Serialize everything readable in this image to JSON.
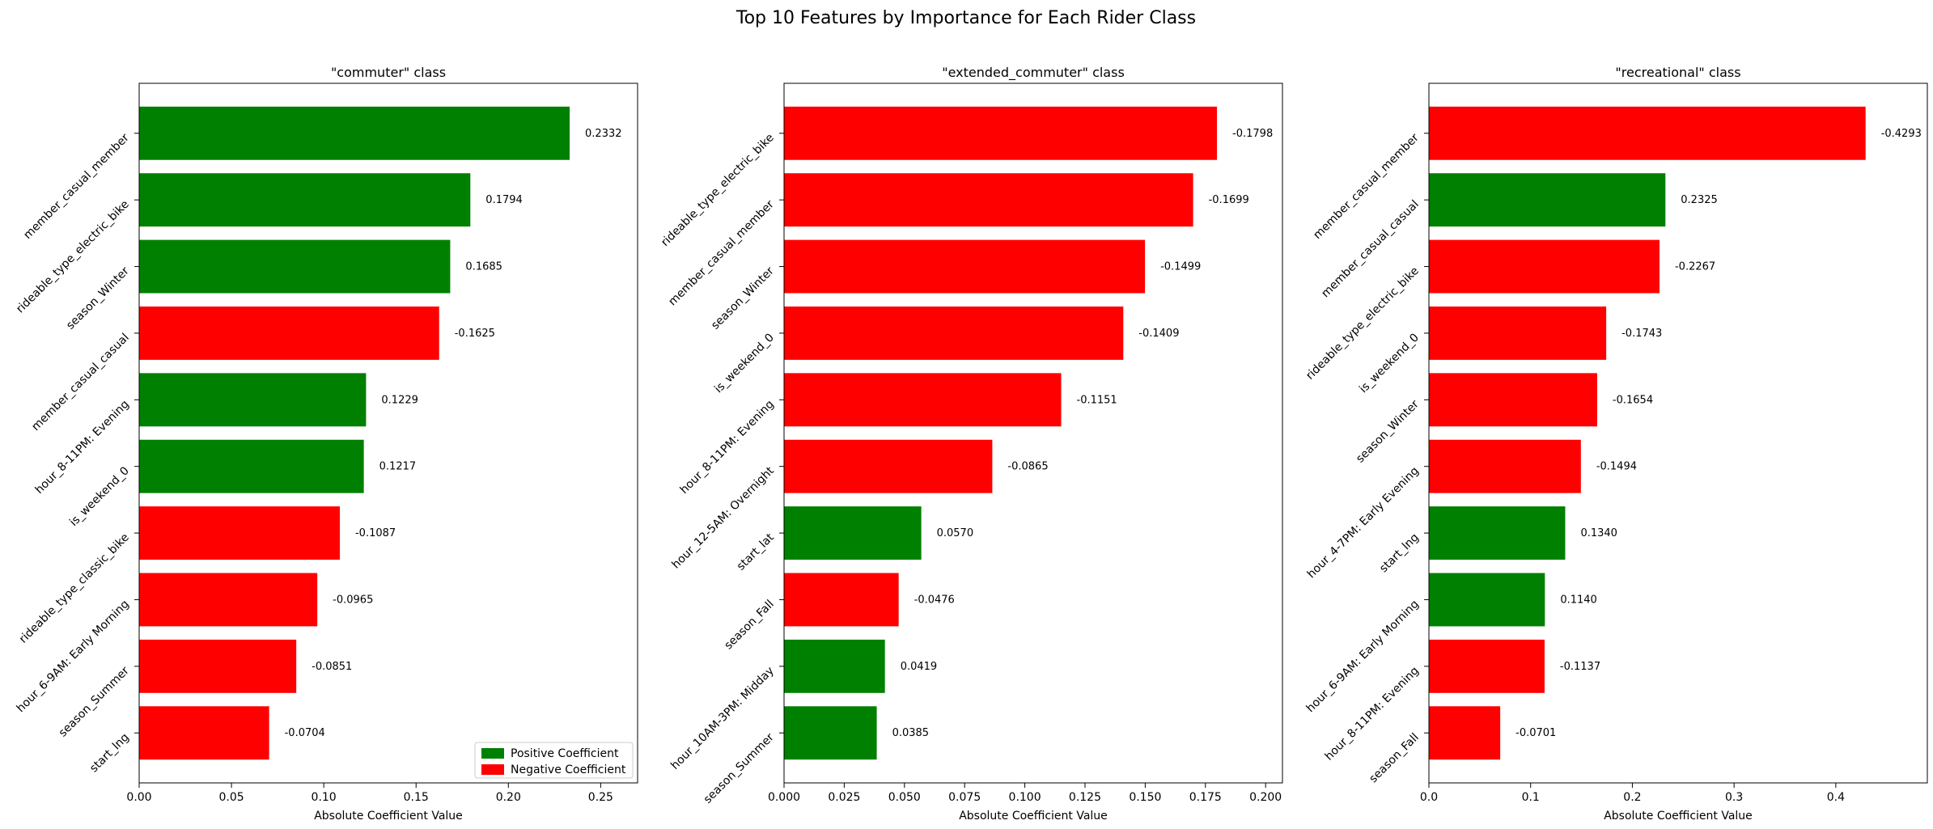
{
  "figure_title": "Top 10 Features by Importance for Each Rider Class",
  "legend": {
    "placement": "lower-right of first panel",
    "entries": [
      {
        "label": "Positive Coefficient",
        "color": "#008000"
      },
      {
        "label": "Negative Coefficient",
        "color": "#ff0000"
      }
    ]
  },
  "colors": {
    "positive": "#008000",
    "negative": "#ff0000"
  },
  "chart_data": [
    {
      "type": "bar",
      "orientation": "horizontal",
      "title": "\"commuter\" class",
      "xlabel": "Absolute Coefficient Value",
      "ylabel": "",
      "xlim": [
        0,
        0.27
      ],
      "xticks": [
        0,
        0.05,
        0.1,
        0.15,
        0.2,
        0.25
      ],
      "xtick_labels": [
        "0.00",
        "0.05",
        "0.10",
        "0.15",
        "0.20",
        "0.25"
      ],
      "grid": false,
      "categories": [
        "member_casual_member",
        "rideable_type_electric_bike",
        "season_Winter",
        "member_casual_casual",
        "hour_8-11PM: Evening",
        "is_weekend_0",
        "rideable_type_classic_bike",
        "hour_6-9AM: Early Morning",
        "season_Summer",
        "start_lng"
      ],
      "coefficients": [
        0.2332,
        0.1794,
        0.1685,
        -0.1625,
        0.1229,
        0.1217,
        -0.1087,
        -0.0965,
        -0.0851,
        -0.0704
      ],
      "value_labels": [
        "0.2332",
        "0.1794",
        "0.1685",
        "-0.1625",
        "0.1229",
        "0.1217",
        "-0.1087",
        "-0.0965",
        "-0.0851",
        "-0.0704"
      ]
    },
    {
      "type": "bar",
      "orientation": "horizontal",
      "title": "\"extended_commuter\" class",
      "xlabel": "Absolute Coefficient Value",
      "ylabel": "",
      "xlim": [
        0,
        0.207
      ],
      "xticks": [
        0,
        0.025,
        0.05,
        0.075,
        0.1,
        0.125,
        0.15,
        0.175,
        0.2
      ],
      "xtick_labels": [
        "0.000",
        "0.025",
        "0.050",
        "0.075",
        "0.100",
        "0.125",
        "0.150",
        "0.175",
        "0.200"
      ],
      "grid": false,
      "categories": [
        "rideable_type_electric_bike",
        "member_casual_member",
        "season_Winter",
        "is_weekend_0",
        "hour_8-11PM: Evening",
        "hour_12-5AM: Overnight",
        "start_lat",
        "season_Fall",
        "hour_10AM-3PM: Midday",
        "season_Summer"
      ],
      "coefficients": [
        -0.1798,
        -0.1699,
        -0.1499,
        -0.1409,
        -0.1151,
        -0.0865,
        0.057,
        -0.0476,
        0.0419,
        0.0385
      ],
      "value_labels": [
        "-0.1798",
        "-0.1699",
        "-0.1499",
        "-0.1409",
        "-0.1151",
        "-0.0865",
        "0.0570",
        "-0.0476",
        "0.0419",
        "0.0385"
      ]
    },
    {
      "type": "bar",
      "orientation": "horizontal",
      "title": "\"recreational\" class",
      "xlabel": "Absolute Coefficient Value",
      "ylabel": "",
      "xlim": [
        0,
        0.49
      ],
      "xticks": [
        0,
        0.1,
        0.2,
        0.3,
        0.4
      ],
      "xtick_labels": [
        "0.0",
        "0.1",
        "0.2",
        "0.3",
        "0.4"
      ],
      "grid": false,
      "categories": [
        "member_casual_member",
        "member_casual_casual",
        "rideable_type_electric_bike",
        "is_weekend_0",
        "season_Winter",
        "hour_4-7PM: Early Evening",
        "start_lng",
        "hour_6-9AM: Early Morning",
        "hour_8-11PM: Evening",
        "season_Fall"
      ],
      "coefficients": [
        -0.4293,
        0.2325,
        -0.2267,
        -0.1743,
        -0.1654,
        -0.1494,
        0.134,
        0.114,
        -0.1137,
        -0.0701
      ],
      "value_labels": [
        "-0.4293",
        "0.2325",
        "-0.2267",
        "-0.1743",
        "-0.1654",
        "-0.1494",
        "0.1340",
        "0.1140",
        "-0.1137",
        "-0.0701"
      ]
    }
  ]
}
